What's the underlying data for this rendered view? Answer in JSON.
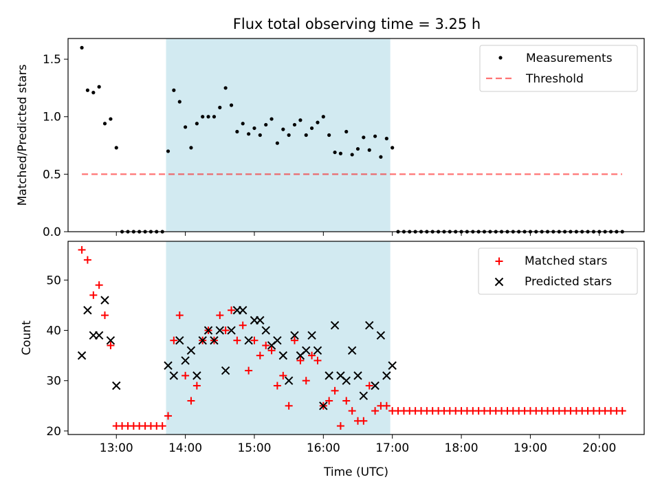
{
  "figure_title": "Flux total observing time = 3.25 h",
  "colors": {
    "shade": "#add8e6",
    "threshold": "#ff0000",
    "matched": "#ff0000",
    "predicted": "#000000",
    "measurements": "#000000"
  },
  "chart_data": [
    {
      "type": "scatter",
      "panel": "top",
      "ylabel": "Matched/Predicted stars",
      "xlabel": "",
      "xlim": [
        12.3,
        20.65
      ],
      "ylim": [
        0.0,
        1.68
      ],
      "yticks": [
        0.0,
        0.5,
        1.0,
        1.5
      ],
      "ytick_labels": [
        "0.0",
        "0.5",
        "1.0",
        "1.5"
      ],
      "legend_position": "upper right",
      "shaded_interval": [
        13.72,
        16.97
      ],
      "threshold": {
        "name": "Threshold",
        "y": 0.5,
        "x_range": [
          12.5,
          20.33
        ],
        "style": "dashed",
        "color": "#ff0000"
      },
      "series": [
        {
          "name": "Measurements",
          "marker": "dot",
          "x": [
            12.5,
            12.583,
            12.667,
            12.75,
            12.833,
            12.917,
            13.0,
            13.083,
            13.167,
            13.25,
            13.333,
            13.417,
            13.5,
            13.583,
            13.667,
            13.75,
            13.833,
            13.917,
            14.0,
            14.083,
            14.167,
            14.25,
            14.333,
            14.417,
            14.5,
            14.583,
            14.667,
            14.75,
            14.833,
            14.917,
            15.0,
            15.083,
            15.167,
            15.25,
            15.333,
            15.417,
            15.5,
            15.583,
            15.667,
            15.75,
            15.833,
            15.917,
            16.0,
            16.083,
            16.167,
            16.25,
            16.333,
            16.417,
            16.5,
            16.583,
            16.667,
            16.75,
            16.833,
            16.917,
            17.0,
            17.083,
            17.167,
            17.25,
            17.333,
            17.417,
            17.5,
            17.583,
            17.667,
            17.75,
            17.833,
            17.917,
            18.0,
            18.083,
            18.167,
            18.25,
            18.333,
            18.417,
            18.5,
            18.583,
            18.667,
            18.75,
            18.833,
            18.917,
            19.0,
            19.083,
            19.167,
            19.25,
            19.333,
            19.417,
            19.5,
            19.583,
            19.667,
            19.75,
            19.833,
            19.917,
            20.0,
            20.083,
            20.167,
            20.25,
            20.333
          ],
          "y": [
            1.6,
            1.23,
            1.21,
            1.26,
            0.94,
            0.98,
            0.73,
            0,
            0,
            0,
            0,
            0,
            0,
            0,
            0,
            0.7,
            1.23,
            1.13,
            0.91,
            0.73,
            0.94,
            1.0,
            1.0,
            1.0,
            1.08,
            1.25,
            1.1,
            0.87,
            0.94,
            0.85,
            0.9,
            0.84,
            0.93,
            0.98,
            0.77,
            0.89,
            0.84,
            0.93,
            0.97,
            0.84,
            0.9,
            0.95,
            1.0,
            0.84,
            0.69,
            0.68,
            0.87,
            0.67,
            0.72,
            0.82,
            0.71,
            0.83,
            0.65,
            0.81,
            0.73,
            0,
            0,
            0,
            0,
            0,
            0,
            0,
            0,
            0,
            0,
            0,
            0,
            0,
            0,
            0,
            0,
            0,
            0,
            0,
            0,
            0,
            0,
            0,
            0,
            0,
            0,
            0,
            0,
            0,
            0,
            0,
            0,
            0,
            0,
            0,
            0,
            0,
            0,
            0,
            0
          ]
        }
      ]
    },
    {
      "type": "scatter",
      "panel": "bottom",
      "xlabel": "Time (UTC)",
      "ylabel": "Count",
      "xlim": [
        12.3,
        20.65
      ],
      "ylim": [
        19.3,
        57.7
      ],
      "yticks": [
        20,
        30,
        40,
        50
      ],
      "ytick_labels": [
        "20",
        "30",
        "40",
        "50"
      ],
      "xticks": [
        13,
        14,
        15,
        16,
        17,
        18,
        19,
        20
      ],
      "xtick_labels": [
        "13:00",
        "14:00",
        "15:00",
        "16:00",
        "17:00",
        "18:00",
        "19:00",
        "20:00"
      ],
      "legend_position": "upper right",
      "shaded_interval": [
        13.72,
        16.97
      ],
      "series": [
        {
          "name": "Matched stars",
          "marker": "plus",
          "x": [
            12.5,
            12.583,
            12.667,
            12.75,
            12.833,
            12.917,
            13.0,
            13.083,
            13.167,
            13.25,
            13.333,
            13.417,
            13.5,
            13.583,
            13.667,
            13.75,
            13.833,
            13.917,
            14.0,
            14.083,
            14.167,
            14.25,
            14.333,
            14.417,
            14.5,
            14.583,
            14.667,
            14.75,
            14.833,
            14.917,
            15.0,
            15.083,
            15.167,
            15.25,
            15.333,
            15.417,
            15.5,
            15.583,
            15.667,
            15.75,
            15.833,
            15.917,
            16.0,
            16.083,
            16.167,
            16.25,
            16.333,
            16.417,
            16.5,
            16.583,
            16.667,
            16.75,
            16.833,
            16.917,
            17.0,
            17.083,
            17.167,
            17.25,
            17.333,
            17.417,
            17.5,
            17.583,
            17.667,
            17.75,
            17.833,
            17.917,
            18.0,
            18.083,
            18.167,
            18.25,
            18.333,
            18.417,
            18.5,
            18.583,
            18.667,
            18.75,
            18.833,
            18.917,
            19.0,
            19.083,
            19.167,
            19.25,
            19.333,
            19.417,
            19.5,
            19.583,
            19.667,
            19.75,
            19.833,
            19.917,
            20.0,
            20.083,
            20.167,
            20.25,
            20.333
          ],
          "y": [
            56,
            54,
            47,
            49,
            43,
            37,
            21,
            21,
            21,
            21,
            21,
            21,
            21,
            21,
            21,
            23,
            38,
            43,
            31,
            26,
            29,
            38,
            40,
            38,
            43,
            40,
            44,
            38,
            41,
            32,
            38,
            35,
            37,
            36,
            29,
            31,
            25,
            38,
            34,
            30,
            35,
            34,
            25,
            26,
            28,
            21,
            26,
            24,
            22,
            22,
            29,
            24,
            25,
            25,
            24,
            24,
            24,
            24,
            24,
            24,
            24,
            24,
            24,
            24,
            24,
            24,
            24,
            24,
            24,
            24,
            24,
            24,
            24,
            24,
            24,
            24,
            24,
            24,
            24,
            24,
            24,
            24,
            24,
            24,
            24,
            24,
            24,
            24,
            24,
            24,
            24,
            24,
            24,
            24,
            24
          ]
        },
        {
          "name": "Predicted stars",
          "marker": "x",
          "x": [
            12.5,
            12.583,
            12.667,
            12.75,
            12.833,
            12.917,
            13.0,
            13.75,
            13.833,
            13.917,
            14.0,
            14.083,
            14.167,
            14.25,
            14.333,
            14.417,
            14.5,
            14.583,
            14.667,
            14.75,
            14.833,
            14.917,
            15.0,
            15.083,
            15.167,
            15.25,
            15.333,
            15.417,
            15.5,
            15.583,
            15.667,
            15.75,
            15.833,
            15.917,
            16.0,
            16.083,
            16.167,
            16.25,
            16.333,
            16.417,
            16.5,
            16.583,
            16.667,
            16.75,
            16.833,
            16.917,
            17.0
          ],
          "y": [
            35,
            44,
            39,
            39,
            46,
            38,
            29,
            33,
            31,
            38,
            34,
            36,
            31,
            38,
            40,
            38,
            40,
            32,
            40,
            44,
            44,
            38,
            42,
            42,
            40,
            37,
            38,
            35,
            30,
            39,
            35,
            36,
            39,
            36,
            25,
            31,
            41,
            31,
            30,
            36,
            31,
            27,
            41,
            29,
            39,
            31,
            33
          ]
        }
      ]
    }
  ]
}
